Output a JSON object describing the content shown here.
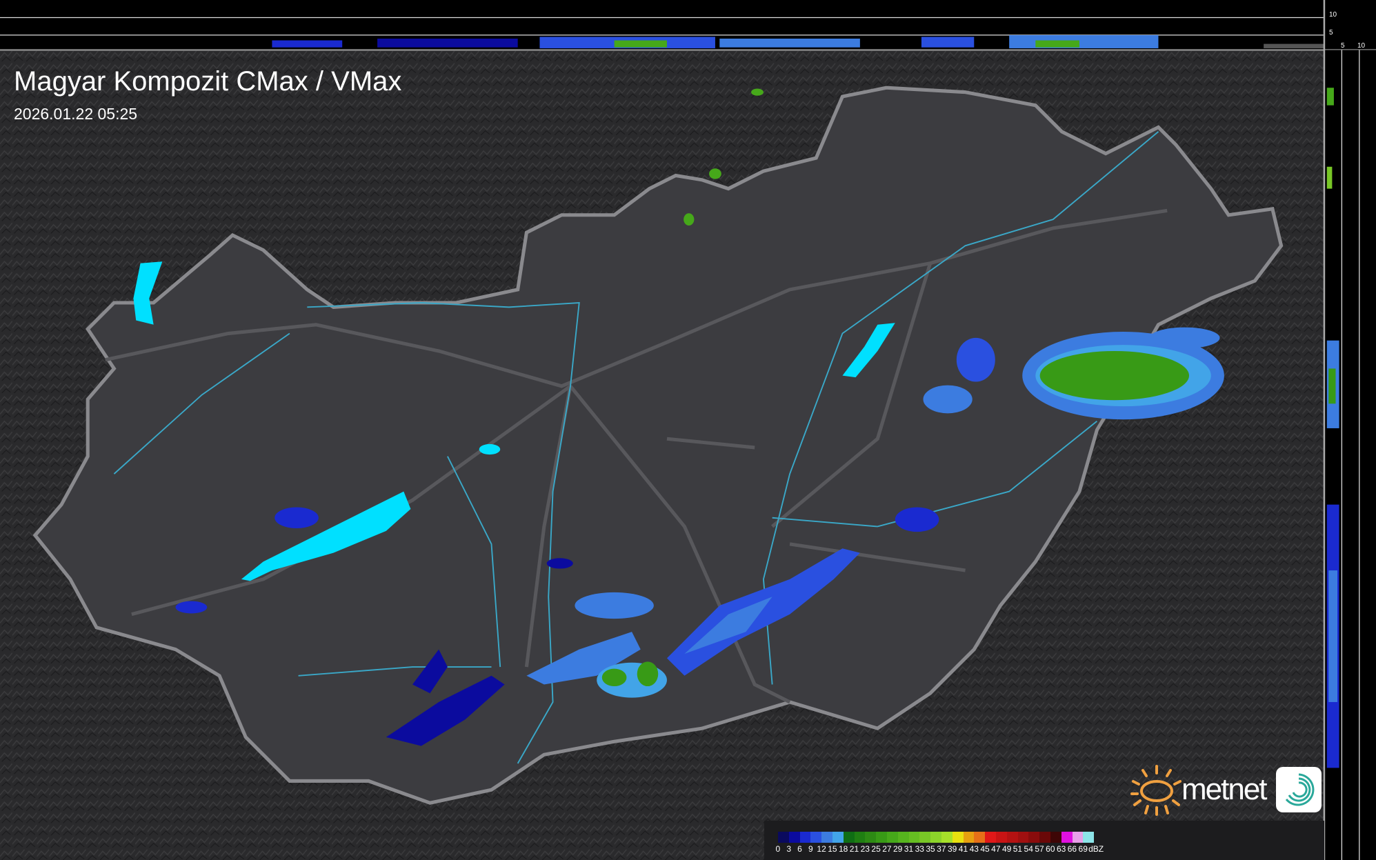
{
  "header": {
    "title": "Magyar Kompozit CMax / VMax",
    "timestamp": "2026.01.22 05:25"
  },
  "side_profile_axis": {
    "top_ticks": [
      "10",
      "5"
    ],
    "right_ticks": [
      "5",
      "10"
    ]
  },
  "legend": {
    "unit": "dBZ",
    "ticks": [
      "0",
      "3",
      "6",
      "9",
      "12",
      "15",
      "18",
      "21",
      "23",
      "25",
      "27",
      "29",
      "31",
      "33",
      "35",
      "37",
      "39",
      "41",
      "43",
      "45",
      "47",
      "49",
      "51",
      "54",
      "57",
      "60",
      "63",
      "66",
      "69"
    ],
    "colors": [
      "#0a0a5e",
      "#0b0b9e",
      "#1a2ad0",
      "#2a50e0",
      "#3c7ce0",
      "#42a4e8",
      "#0f6e14",
      "#1f7e12",
      "#2d8a14",
      "#389a16",
      "#46a81a",
      "#56b41e",
      "#66be22",
      "#78c626",
      "#8cd42a",
      "#a6e02a",
      "#e8e010",
      "#e6a010",
      "#e67018",
      "#e01818",
      "#c81414",
      "#b41212",
      "#a01010",
      "#8a0c0c",
      "#6a0808",
      "#3e0606",
      "#e010e0",
      "#e8a0e8",
      "#8ce4e8"
    ]
  },
  "branding": {
    "logo_text": "metnet",
    "logo_color": "#f0a040",
    "app_icon_color": "#2aa89a"
  },
  "colors": {
    "country_fill": "#3c3c40",
    "border": "#8a8a8e",
    "rivers": "#3aa8c8",
    "lakes": "#00e0ff"
  }
}
